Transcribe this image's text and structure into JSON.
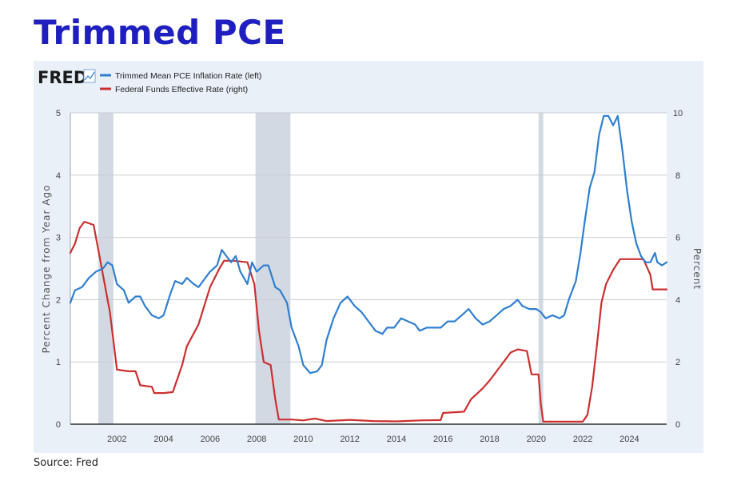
{
  "page": {
    "title": "Trimmed PCE",
    "source": "Source: Fred"
  },
  "logo": {
    "text": "FRED"
  },
  "colors": {
    "title": "#1f1fbf",
    "series_left": "#2f7fd0",
    "series_right": "#cc2f2f",
    "recession": "#d3d9e2",
    "panel_bg": "#e9f0f8",
    "plot_bg": "#ffffff"
  },
  "chart_data": {
    "type": "line",
    "x_ticks": [
      "2002",
      "2004",
      "2006",
      "2008",
      "2010",
      "2012",
      "2014",
      "2016",
      "2018",
      "2020",
      "2022",
      "2024"
    ],
    "x_range": [
      2000.0,
      2025.6
    ],
    "left_axis": {
      "label": "Percent Change from Year Ago",
      "range": [
        0,
        5
      ],
      "ticks": [
        "0",
        "1",
        "2",
        "3",
        "4",
        "5"
      ]
    },
    "right_axis": {
      "label": "Percent",
      "range": [
        0,
        10
      ],
      "ticks": [
        "0",
        "2",
        "4",
        "6",
        "8",
        "10"
      ]
    },
    "recessions": [
      [
        2001.2,
        2001.85
      ],
      [
        2007.95,
        2009.45
      ],
      [
        2020.1,
        2020.3
      ]
    ],
    "series": [
      {
        "name": "Trimmed Mean PCE Inflation Rate (left)",
        "axis": "left",
        "points": [
          [
            2000.0,
            1.95
          ],
          [
            2000.2,
            2.15
          ],
          [
            2000.5,
            2.2
          ],
          [
            2000.8,
            2.35
          ],
          [
            2001.1,
            2.45
          ],
          [
            2001.4,
            2.5
          ],
          [
            2001.6,
            2.6
          ],
          [
            2001.8,
            2.55
          ],
          [
            2002.0,
            2.25
          ],
          [
            2002.3,
            2.15
          ],
          [
            2002.5,
            1.95
          ],
          [
            2002.8,
            2.05
          ],
          [
            2003.0,
            2.05
          ],
          [
            2003.2,
            1.9
          ],
          [
            2003.5,
            1.75
          ],
          [
            2003.8,
            1.7
          ],
          [
            2004.0,
            1.75
          ],
          [
            2004.3,
            2.1
          ],
          [
            2004.5,
            2.3
          ],
          [
            2004.8,
            2.25
          ],
          [
            2005.0,
            2.35
          ],
          [
            2005.3,
            2.25
          ],
          [
            2005.5,
            2.2
          ],
          [
            2005.8,
            2.35
          ],
          [
            2006.0,
            2.45
          ],
          [
            2006.3,
            2.55
          ],
          [
            2006.5,
            2.8
          ],
          [
            2006.7,
            2.7
          ],
          [
            2006.9,
            2.6
          ],
          [
            2007.1,
            2.7
          ],
          [
            2007.3,
            2.45
          ],
          [
            2007.6,
            2.25
          ],
          [
            2007.8,
            2.6
          ],
          [
            2008.0,
            2.45
          ],
          [
            2008.3,
            2.55
          ],
          [
            2008.5,
            2.55
          ],
          [
            2008.8,
            2.2
          ],
          [
            2009.0,
            2.15
          ],
          [
            2009.3,
            1.95
          ],
          [
            2009.5,
            1.55
          ],
          [
            2009.8,
            1.25
          ],
          [
            2010.0,
            0.95
          ],
          [
            2010.3,
            0.82
          ],
          [
            2010.6,
            0.85
          ],
          [
            2010.8,
            0.95
          ],
          [
            2011.0,
            1.35
          ],
          [
            2011.3,
            1.7
          ],
          [
            2011.6,
            1.95
          ],
          [
            2011.9,
            2.05
          ],
          [
            2012.2,
            1.9
          ],
          [
            2012.5,
            1.8
          ],
          [
            2012.8,
            1.65
          ],
          [
            2013.1,
            1.5
          ],
          [
            2013.4,
            1.45
          ],
          [
            2013.6,
            1.55
          ],
          [
            2013.9,
            1.55
          ],
          [
            2014.2,
            1.7
          ],
          [
            2014.5,
            1.65
          ],
          [
            2014.8,
            1.6
          ],
          [
            2015.0,
            1.5
          ],
          [
            2015.3,
            1.55
          ],
          [
            2015.6,
            1.55
          ],
          [
            2015.9,
            1.55
          ],
          [
            2016.2,
            1.65
          ],
          [
            2016.5,
            1.65
          ],
          [
            2016.8,
            1.75
          ],
          [
            2017.1,
            1.85
          ],
          [
            2017.4,
            1.7
          ],
          [
            2017.7,
            1.6
          ],
          [
            2018.0,
            1.65
          ],
          [
            2018.3,
            1.75
          ],
          [
            2018.6,
            1.85
          ],
          [
            2018.9,
            1.9
          ],
          [
            2019.2,
            2.0
          ],
          [
            2019.4,
            1.9
          ],
          [
            2019.7,
            1.85
          ],
          [
            2020.0,
            1.85
          ],
          [
            2020.2,
            1.8
          ],
          [
            2020.4,
            1.7
          ],
          [
            2020.7,
            1.75
          ],
          [
            2021.0,
            1.7
          ],
          [
            2021.2,
            1.75
          ],
          [
            2021.4,
            2.0
          ],
          [
            2021.7,
            2.3
          ],
          [
            2021.9,
            2.75
          ],
          [
            2022.1,
            3.3
          ],
          [
            2022.3,
            3.8
          ],
          [
            2022.5,
            4.05
          ],
          [
            2022.7,
            4.65
          ],
          [
            2022.9,
            4.95
          ],
          [
            2023.1,
            4.95
          ],
          [
            2023.3,
            4.8
          ],
          [
            2023.5,
            4.95
          ],
          [
            2023.7,
            4.4
          ],
          [
            2023.9,
            3.75
          ],
          [
            2024.1,
            3.25
          ],
          [
            2024.3,
            2.9
          ],
          [
            2024.5,
            2.7
          ],
          [
            2024.7,
            2.6
          ],
          [
            2024.9,
            2.6
          ],
          [
            2025.1,
            2.75
          ],
          [
            2025.2,
            2.6
          ],
          [
            2025.4,
            2.55
          ],
          [
            2025.6,
            2.6
          ]
        ]
      },
      {
        "name": "Federal Funds Effective Rate (right)",
        "axis": "right",
        "points": [
          [
            2000.0,
            5.5
          ],
          [
            2000.2,
            5.8
          ],
          [
            2000.4,
            6.3
          ],
          [
            2000.6,
            6.5
          ],
          [
            2001.0,
            6.4
          ],
          [
            2001.2,
            5.6
          ],
          [
            2001.4,
            4.8
          ],
          [
            2001.7,
            3.6
          ],
          [
            2002.0,
            1.75
          ],
          [
            2002.5,
            1.7
          ],
          [
            2002.8,
            1.7
          ],
          [
            2003.0,
            1.25
          ],
          [
            2003.5,
            1.2
          ],
          [
            2003.6,
            1.0
          ],
          [
            2004.0,
            1.0
          ],
          [
            2004.4,
            1.03
          ],
          [
            2004.8,
            1.9
          ],
          [
            2005.0,
            2.5
          ],
          [
            2005.5,
            3.2
          ],
          [
            2006.0,
            4.4
          ],
          [
            2006.4,
            5.0
          ],
          [
            2006.6,
            5.25
          ],
          [
            2007.0,
            5.25
          ],
          [
            2007.6,
            5.2
          ],
          [
            2007.9,
            4.5
          ],
          [
            2008.1,
            3.0
          ],
          [
            2008.3,
            2.0
          ],
          [
            2008.6,
            1.9
          ],
          [
            2008.8,
            0.8
          ],
          [
            2008.95,
            0.15
          ],
          [
            2009.5,
            0.15
          ],
          [
            2010.0,
            0.12
          ],
          [
            2010.5,
            0.18
          ],
          [
            2011.0,
            0.1
          ],
          [
            2012.0,
            0.14
          ],
          [
            2013.0,
            0.1
          ],
          [
            2014.0,
            0.09
          ],
          [
            2015.0,
            0.12
          ],
          [
            2015.9,
            0.13
          ],
          [
            2016.0,
            0.36
          ],
          [
            2016.9,
            0.4
          ],
          [
            2017.2,
            0.8
          ],
          [
            2017.7,
            1.15
          ],
          [
            2018.0,
            1.4
          ],
          [
            2018.5,
            1.9
          ],
          [
            2018.9,
            2.3
          ],
          [
            2019.2,
            2.4
          ],
          [
            2019.6,
            2.35
          ],
          [
            2019.8,
            1.6
          ],
          [
            2020.1,
            1.6
          ],
          [
            2020.2,
            0.65
          ],
          [
            2020.3,
            0.08
          ],
          [
            2021.0,
            0.08
          ],
          [
            2022.0,
            0.08
          ],
          [
            2022.2,
            0.3
          ],
          [
            2022.4,
            1.2
          ],
          [
            2022.6,
            2.5
          ],
          [
            2022.8,
            3.9
          ],
          [
            2023.0,
            4.5
          ],
          [
            2023.3,
            4.95
          ],
          [
            2023.6,
            5.3
          ],
          [
            2024.6,
            5.3
          ],
          [
            2024.9,
            4.8
          ],
          [
            2025.0,
            4.33
          ],
          [
            2025.6,
            4.33
          ]
        ]
      }
    ]
  }
}
